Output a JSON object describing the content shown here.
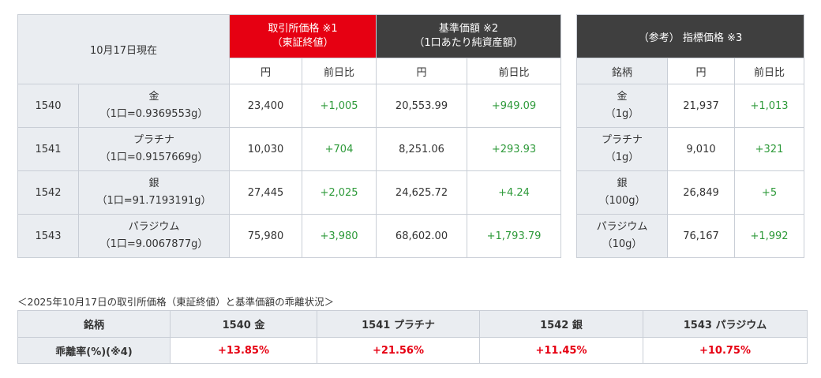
{
  "main": {
    "as_of": "10月17日現在",
    "exchange_header": [
      "取引所価格 ※1",
      "（東証終値）"
    ],
    "nav_header": [
      "基準価額 ※2",
      "（1口あたり純資産額）"
    ],
    "sub_yen": "円",
    "sub_change": "前日比",
    "rows": [
      {
        "code": "1540",
        "name": "金",
        "unit": "（1口=0.9369553g）",
        "ex_price": "23,400",
        "ex_change": "+1,005",
        "nav_price": "20,553.99",
        "nav_change": "+949.09"
      },
      {
        "code": "1541",
        "name": "プラチナ",
        "unit": "（1口=0.9157669g）",
        "ex_price": "10,030",
        "ex_change": "+704",
        "nav_price": "8,251.06",
        "nav_change": "+293.93"
      },
      {
        "code": "1542",
        "name": "銀",
        "unit": "（1口=91.7193191g）",
        "ex_price": "27,445",
        "ex_change": "+2,025",
        "nav_price": "24,625.72",
        "nav_change": "+4.24"
      },
      {
        "code": "1543",
        "name": "パラジウム",
        "unit": "（1口=9.0067877g）",
        "ex_price": "75,980",
        "ex_change": "+3,980",
        "nav_price": "68,602.00",
        "nav_change": "+1,793.79"
      }
    ]
  },
  "reference": {
    "header": "（参考） 指標価格 ※3",
    "sub_brand": "銘柄",
    "sub_yen": "円",
    "sub_change": "前日比",
    "rows": [
      {
        "name": "金",
        "unit": "（1g）",
        "price": "21,937",
        "change": "+1,013"
      },
      {
        "name": "プラチナ",
        "unit": "（1g）",
        "price": "9,010",
        "change": "+321"
      },
      {
        "name": "銀",
        "unit": "（100g）",
        "price": "26,849",
        "change": "+5"
      },
      {
        "name": "パラジウム",
        "unit": "（10g）",
        "price": "76,167",
        "change": "+1,992"
      }
    ]
  },
  "divergence": {
    "caption": "＜2025年10月17日の取引所価格（東証終値）と基準価額の乖離状況＞",
    "brand_label": "銘柄",
    "rate_label": "乖離率(%)(※4)",
    "columns": [
      "1540 金",
      "1541 プラチナ",
      "1542 銀",
      "1543 パラジウム"
    ],
    "rates": [
      "+13.85%",
      "+21.56%",
      "+11.45%",
      "+10.75%"
    ]
  },
  "colors": {
    "exchange_header_bg": "#e60012",
    "nav_header_bg": "#3f3f3f",
    "positive": "#2e9a3a",
    "rate": "#e60012",
    "label_bg": "#eaedf1"
  }
}
